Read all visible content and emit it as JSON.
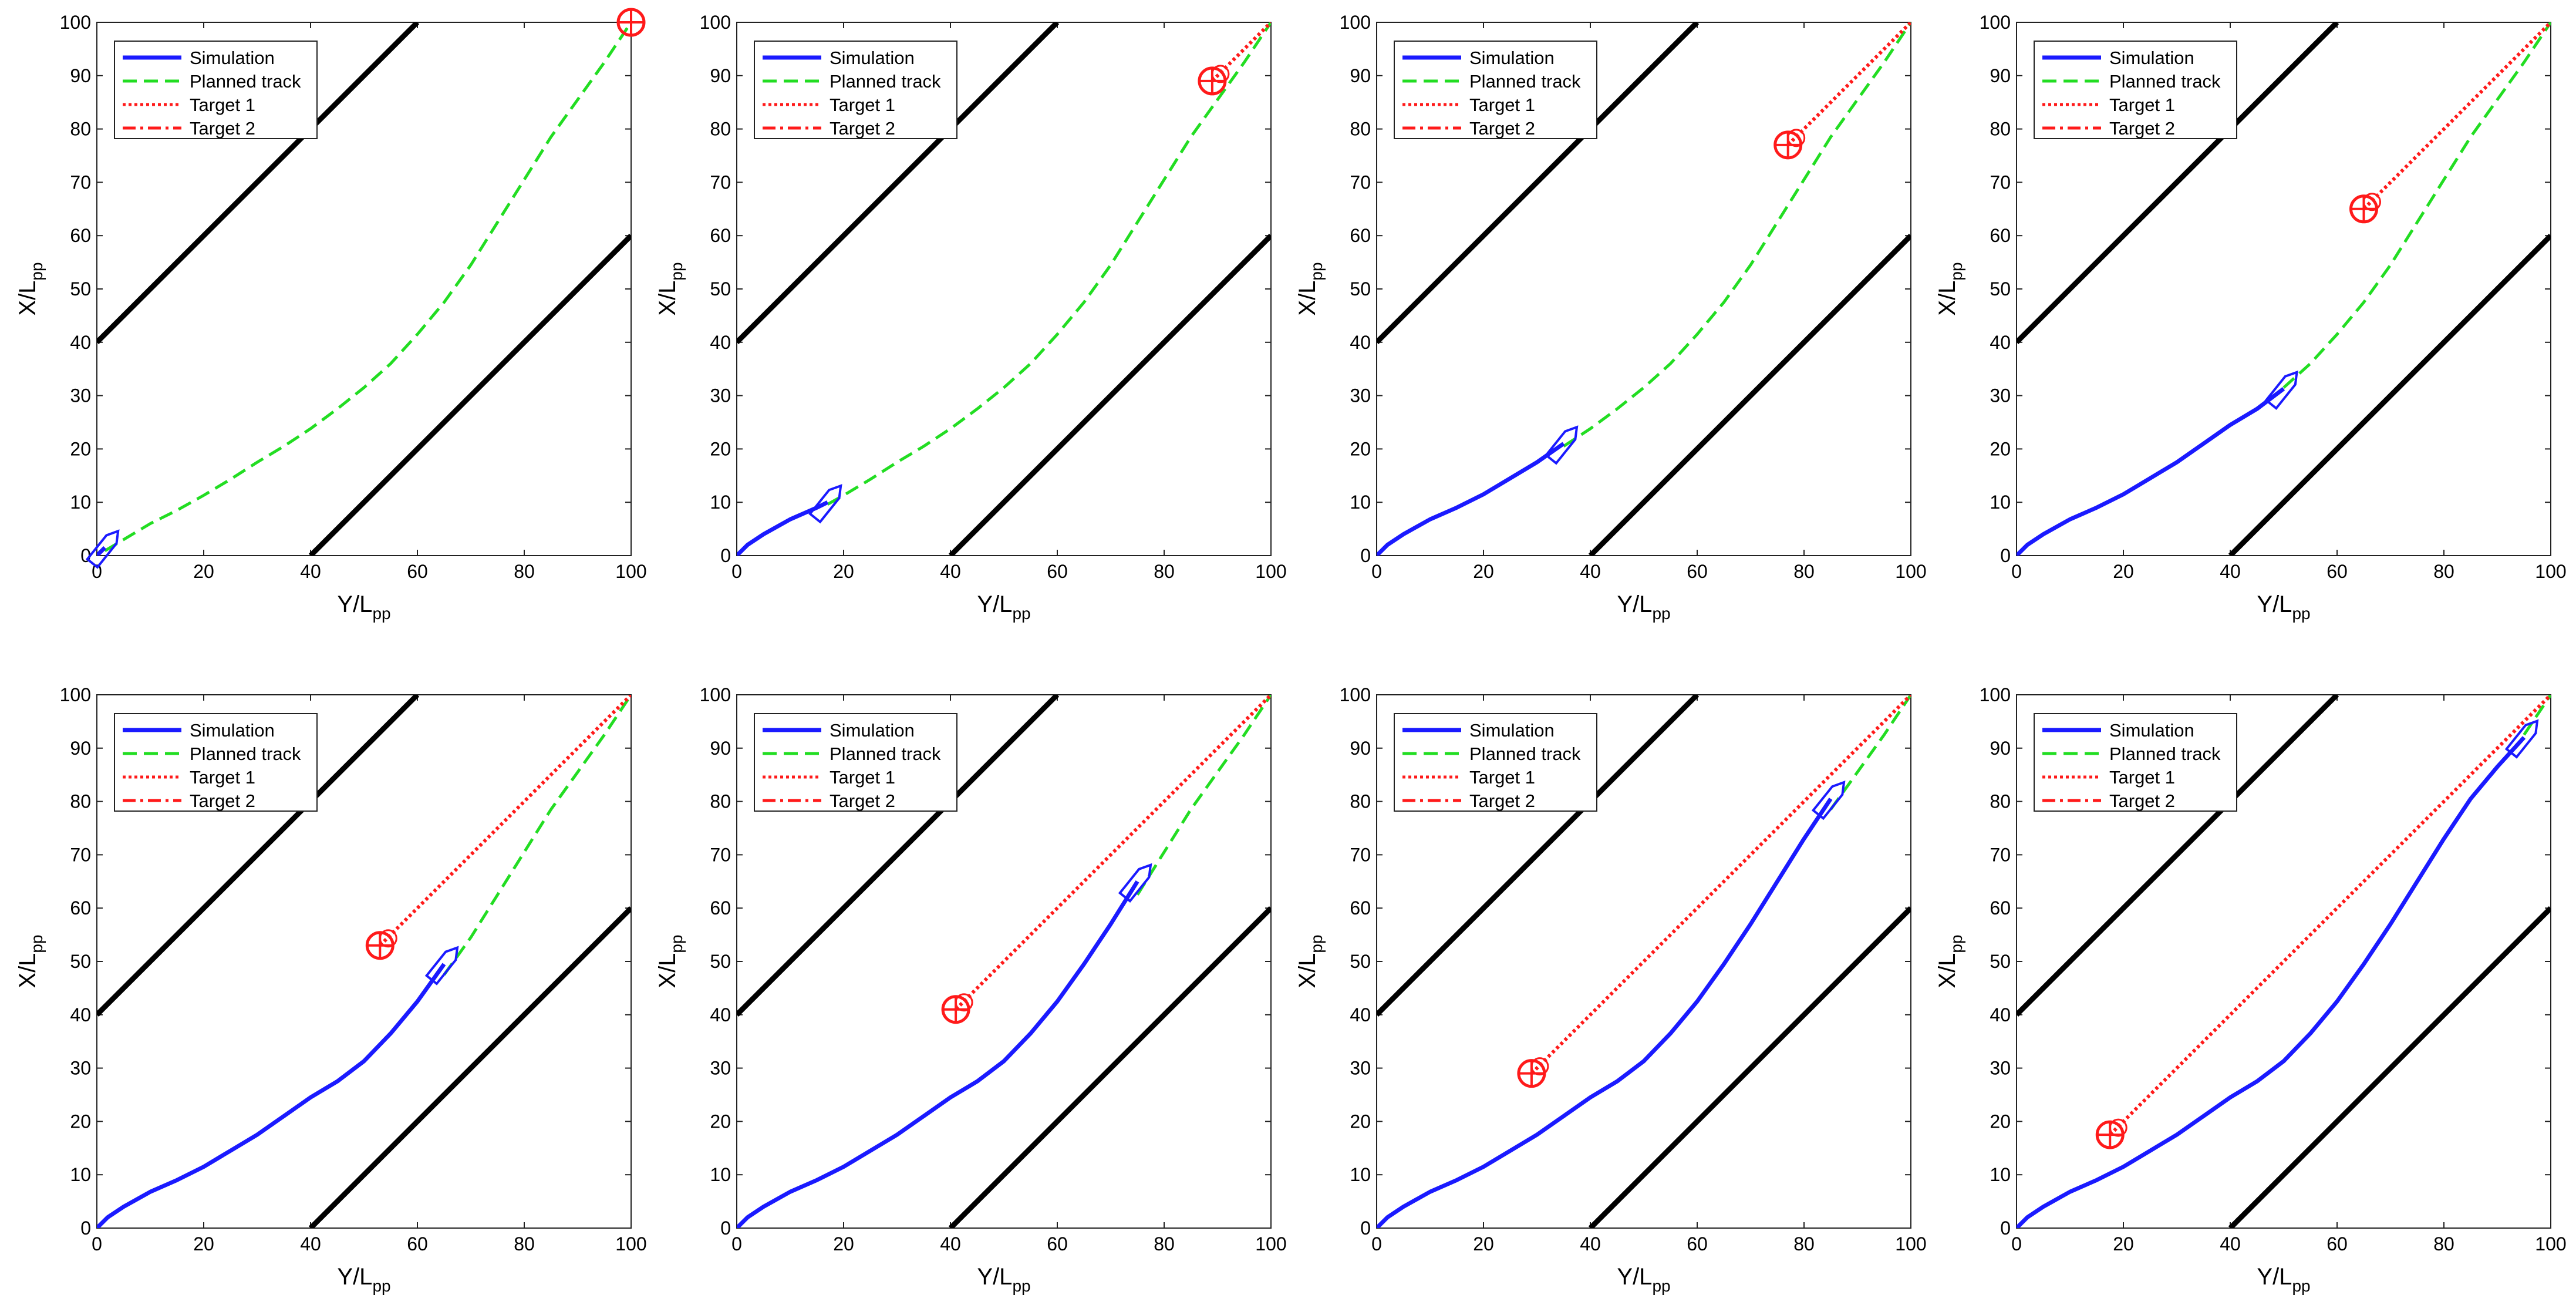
{
  "figure": {
    "type": "line",
    "grid": false,
    "legend_position": "top-left",
    "xlabel": {
      "main": "Y/L",
      "sub": "pp"
    },
    "ylabel": {
      "main": "X/L",
      "sub": "pp"
    },
    "xlim": [
      0,
      100
    ],
    "ylim": [
      0,
      100
    ],
    "xticks": [
      0,
      20,
      40,
      60,
      80,
      100
    ],
    "yticks": [
      0,
      10,
      20,
      30,
      40,
      50,
      60,
      70,
      80,
      90,
      100
    ],
    "legend": [
      {
        "label": "Simulation",
        "style": "solid",
        "color": "#1a1aff"
      },
      {
        "label": "Planned track",
        "style": "dashed",
        "color": "#22dd22"
      },
      {
        "label": "Target 1",
        "style": "dotted",
        "color": "#ff1a1a"
      },
      {
        "label": "Target 2",
        "style": "dashdot",
        "color": "#ff1a1a"
      }
    ],
    "colors": {
      "boundary": "#000000",
      "simulation": "#1a1aff",
      "planned": "#22dd22",
      "target": "#ff1a1a"
    }
  },
  "chart_data": {
    "type": "line",
    "xlim": [
      0,
      100
    ],
    "ylim": [
      0,
      100
    ],
    "boundaries": [
      {
        "x": [
          0,
          60
        ],
        "y": [
          40,
          100
        ]
      },
      {
        "x": [
          40,
          100
        ],
        "y": [
          0,
          60
        ]
      }
    ],
    "planned_track": {
      "x": [
        0,
        5,
        10,
        15,
        20,
        25,
        30,
        35,
        40,
        45,
        50,
        55,
        60,
        65,
        70,
        75,
        80,
        85,
        90,
        95,
        100
      ],
      "y": [
        0,
        3,
        6,
        8.5,
        11.3,
        14.3,
        17.5,
        20.5,
        23.8,
        27.5,
        31.5,
        36,
        41.5,
        47.5,
        54.5,
        62.5,
        70.5,
        78.5,
        85.5,
        92.5,
        100
      ]
    },
    "simulation_track": {
      "x": [
        0,
        2,
        5,
        10,
        15,
        20,
        25,
        30,
        35,
        40,
        45,
        50,
        55,
        60,
        65,
        70,
        75,
        80,
        85,
        90,
        95
      ],
      "y": [
        0,
        2,
        4,
        6.8,
        9,
        11.5,
        14.5,
        17.5,
        21,
        24.5,
        27.5,
        31.3,
        36.5,
        42.5,
        49.5,
        57,
        65,
        73,
        80.5,
        86.5,
        92
      ]
    },
    "panels": [
      {
        "sim_end_x": 1.5,
        "target": [
          100,
          100
        ]
      },
      {
        "sim_end_x": 17,
        "target": [
          89,
          89
        ]
      },
      {
        "sim_end_x": 35,
        "target": [
          77,
          77
        ]
      },
      {
        "sim_end_x": 50,
        "target": [
          65,
          65
        ]
      },
      {
        "sim_end_x": 65,
        "target": [
          53,
          53
        ]
      },
      {
        "sim_end_x": 75,
        "target": [
          41,
          41
        ]
      },
      {
        "sim_end_x": 85,
        "target": [
          29,
          29
        ]
      },
      {
        "sim_end_x": 95,
        "target": [
          17.5,
          17.5
        ]
      }
    ]
  }
}
